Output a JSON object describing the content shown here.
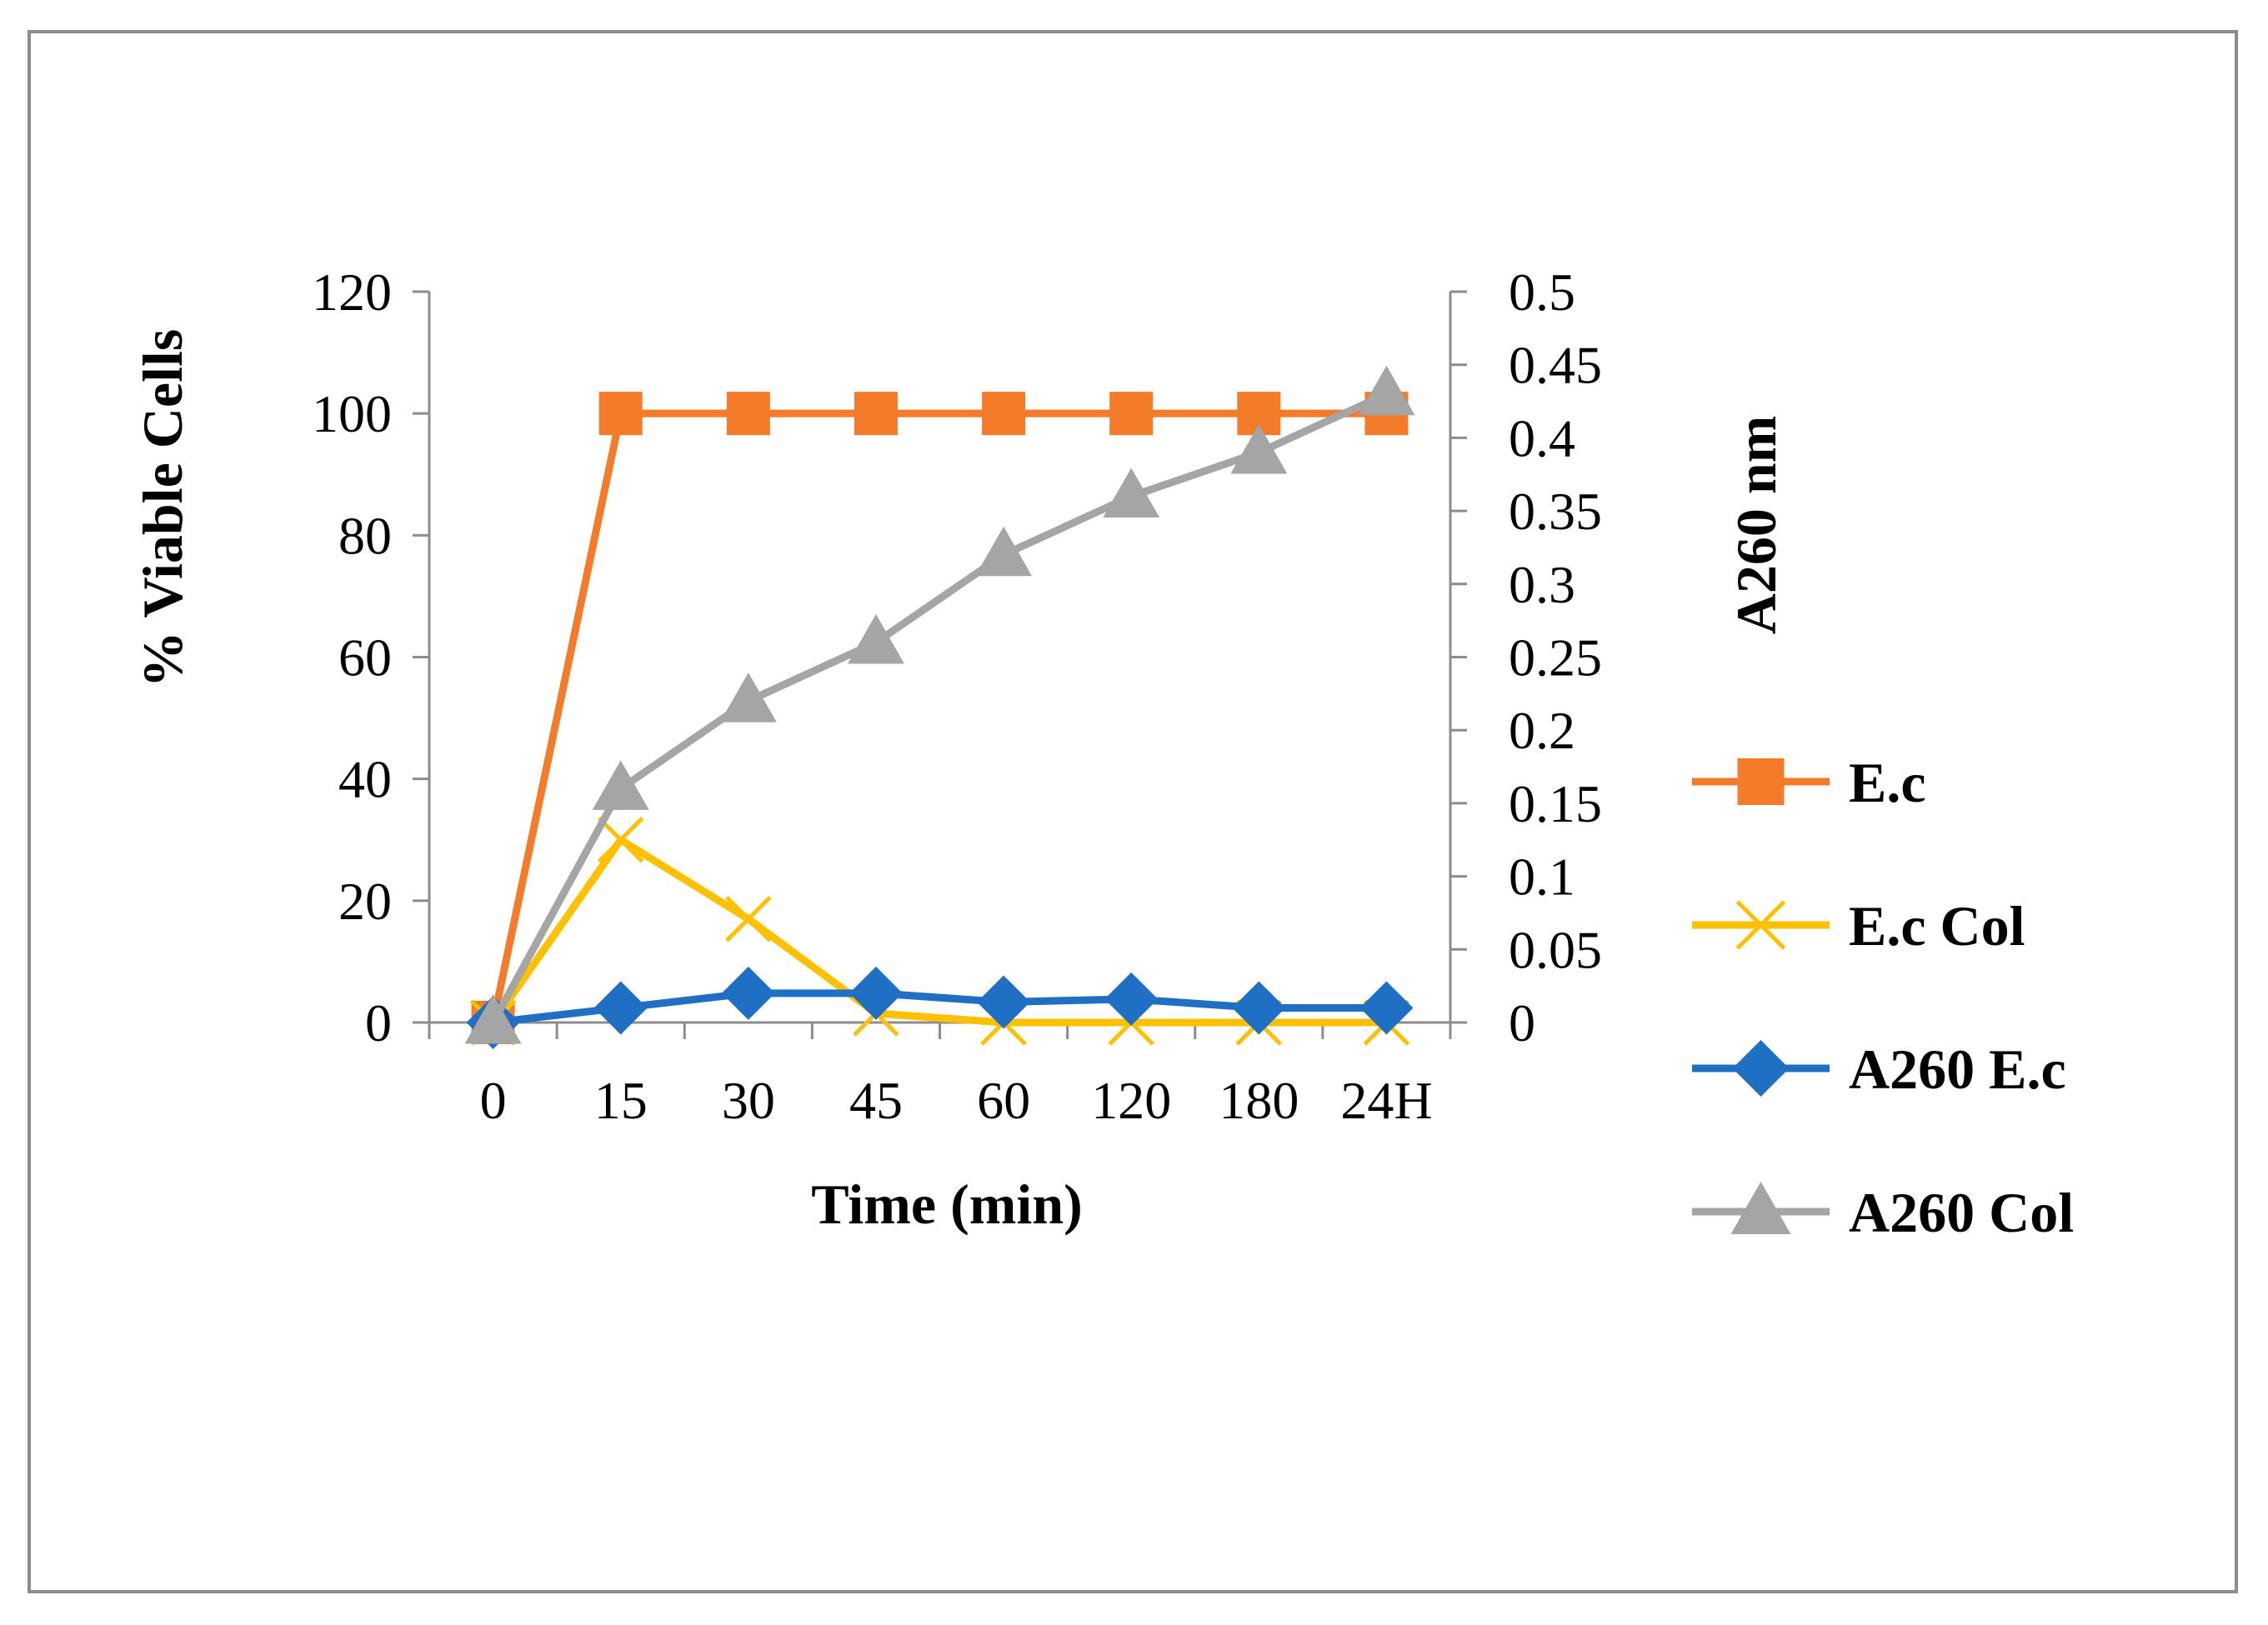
{
  "chart_data": {
    "type": "line",
    "title": "",
    "xlabel": "Time (min)",
    "ylabel": "% Viable Cells",
    "y2label": "A260 nm",
    "categories": [
      "0",
      "15",
      "30",
      "45",
      "60",
      "120",
      "180",
      "24H"
    ],
    "ylim": [
      0,
      120
    ],
    "yticks": [
      0,
      20,
      40,
      60,
      80,
      100,
      120
    ],
    "y2lim": [
      0,
      0.5
    ],
    "y2ticks": [
      "0",
      "0.05",
      "0.1",
      "0.15",
      "0.2",
      "0.25",
      "0.3",
      "0.35",
      "0.4",
      "0.45",
      "0.5"
    ],
    "grid": false,
    "legend_position": "right",
    "series": [
      {
        "name": "E.c",
        "axis": "left",
        "color": "#F47B2A",
        "marker": "square",
        "values": [
          0,
          100,
          100,
          100,
          100,
          100,
          100,
          100
        ]
      },
      {
        "name": "E.c Col",
        "axis": "left",
        "color": "#FFC000",
        "marker": "x",
        "values": [
          0,
          30,
          17,
          1.5,
          0,
          0,
          0,
          0
        ]
      },
      {
        "name": "A260 E.c",
        "axis": "right",
        "color": "#1F6FC5",
        "marker": "diamond",
        "values": [
          0,
          0.01,
          0.02,
          0.02,
          0.014,
          0.016,
          0.01,
          0.01
        ]
      },
      {
        "name": "A260 Col",
        "axis": "right",
        "color": "#A5A5A5",
        "marker": "triangle",
        "values": [
          0,
          0.16,
          0.22,
          0.26,
          0.32,
          0.36,
          0.39,
          0.43
        ]
      }
    ]
  }
}
